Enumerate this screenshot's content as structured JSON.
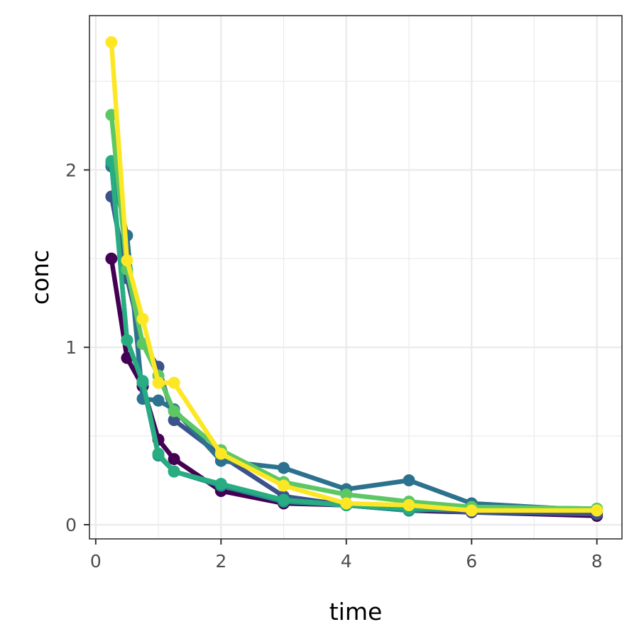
{
  "chart_data": {
    "type": "line",
    "xlabel": "time",
    "ylabel": "conc",
    "xlim": [
      -0.1,
      8.4
    ],
    "ylim": [
      -0.08,
      2.87
    ],
    "x_ticks": [
      0,
      2,
      4,
      6,
      8
    ],
    "x_minor_ticks": [
      1,
      3,
      5,
      7
    ],
    "y_ticks": [
      0,
      1,
      2
    ],
    "y_minor_ticks": [
      0.5,
      1.5,
      2.5
    ],
    "grid": true,
    "legend": "none",
    "colors": {
      "background": "#ffffff",
      "panel_border": "#333333",
      "grid": "#ebebeb",
      "tick_text": "#4d4d4d",
      "axis_title": "#000000"
    },
    "series": [
      {
        "color": "#440154",
        "x": [
          0.25,
          0.5,
          0.75,
          1,
          1.25,
          2,
          3,
          4,
          5,
          6,
          8
        ],
        "values": [
          1.5,
          0.94,
          0.78,
          0.48,
          0.37,
          0.19,
          0.12,
          0.11,
          0.08,
          0.07,
          0.05
        ]
      },
      {
        "color": "#3b528b",
        "x": [
          0.25,
          0.5,
          0.75,
          1,
          1.25,
          2,
          3,
          4,
          5,
          6,
          8
        ],
        "values": [
          1.85,
          1.39,
          1.02,
          0.89,
          0.59,
          0.39,
          0.16,
          0.11,
          0.09,
          0.07,
          0.06
        ]
      },
      {
        "color": "#2c728e",
        "x": [
          0.25,
          0.5,
          0.75,
          1,
          1.25,
          2,
          3,
          4,
          5,
          6,
          8
        ],
        "values": [
          2.02,
          1.63,
          0.71,
          0.7,
          0.65,
          0.36,
          0.32,
          0.2,
          0.25,
          0.12,
          0.08
        ]
      },
      {
        "color": "#21908c",
        "x": [
          0.25,
          0.5,
          0.75,
          1,
          1.25,
          2,
          3,
          4,
          5,
          6,
          8
        ],
        "values": [
          2.04,
          1.04,
          0.8,
          0.39,
          0.3,
          0.22,
          0.13,
          0.11,
          0.08,
          0.09,
          0.08
        ]
      },
      {
        "color": "#27ad81",
        "x": [
          0.25,
          0.5,
          0.75,
          1,
          1.25,
          2,
          3,
          4,
          5,
          6,
          8
        ],
        "values": [
          2.05,
          1.04,
          0.81,
          0.4,
          0.3,
          0.23,
          0.14,
          0.11,
          0.09,
          0.1,
          0.09
        ]
      },
      {
        "color": "#5dc863",
        "x": [
          0.25,
          0.5,
          0.75,
          1,
          1.25,
          2,
          3,
          4,
          5,
          6,
          8
        ],
        "values": [
          2.31,
          1.44,
          1.02,
          0.84,
          0.64,
          0.42,
          0.24,
          0.17,
          0.13,
          0.1,
          0.09
        ]
      },
      {
        "color": "#fde725",
        "x": [
          0.25,
          0.5,
          0.75,
          1,
          1.25,
          2,
          3,
          4,
          5,
          6,
          8
        ],
        "values": [
          2.72,
          1.49,
          1.16,
          0.8,
          0.8,
          0.4,
          0.22,
          0.12,
          0.11,
          0.08,
          0.08
        ]
      }
    ]
  }
}
